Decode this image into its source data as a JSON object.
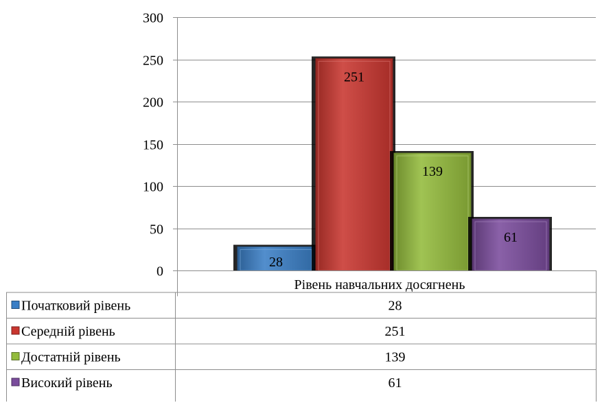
{
  "chart_data": {
    "type": "bar",
    "categories": [
      "Рівень навчальних досягнень"
    ],
    "series": [
      {
        "name": "Початковий рівень",
        "values": [
          28
        ],
        "color": "#3a7fc6"
      },
      {
        "name": "Середній рівень",
        "values": [
          251
        ],
        "color": "#c9362f"
      },
      {
        "name": "Достатній рівень",
        "values": [
          139
        ],
        "color": "#93bb3c"
      },
      {
        "name": "Високий рівень",
        "values": [
          61
        ],
        "color": "#7a4c9c"
      }
    ],
    "ylim": [
      0,
      300
    ],
    "yticks": [
      0,
      50,
      100,
      150,
      200,
      250,
      300
    ],
    "grid": true,
    "legend": "data-table-bottom",
    "data_table": true,
    "title": "",
    "xlabel": "",
    "ylabel": ""
  }
}
